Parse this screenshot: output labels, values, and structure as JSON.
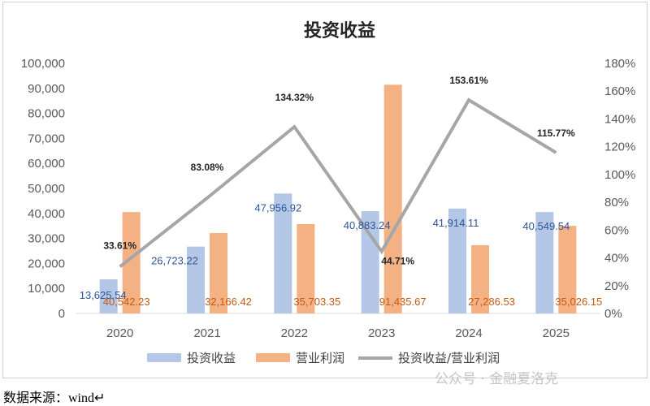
{
  "chart_data": {
    "type": "bar+line",
    "title": "投资收益",
    "categories": [
      "2020",
      "2021",
      "2022",
      "2023",
      "2024",
      "2025"
    ],
    "series": [
      {
        "name": "投资收益",
        "kind": "bar",
        "axis": "left",
        "color": "#b4c7e7",
        "values": [
          13625.54,
          26723.22,
          47956.92,
          40883.24,
          41914.11,
          40549.54
        ],
        "labels": [
          "13,625.54",
          "26,723.22",
          "47,956.92",
          "40,883.24",
          "41,914.11",
          "40,549.54"
        ],
        "label_color": "#2f5597"
      },
      {
        "name": "营业利润",
        "kind": "bar",
        "axis": "left",
        "color": "#f4b183",
        "values": [
          40542.23,
          32166.42,
          35703.35,
          91435.67,
          27286.53,
          35026.15
        ],
        "labels": [
          "40,542.23",
          "32,166.42",
          "35,703.35",
          "91,435.67",
          "27,286.53",
          "35,026.15"
        ],
        "label_color": "#c55a11"
      },
      {
        "name": "投资收益/营业利润",
        "kind": "line",
        "axis": "right",
        "color": "#a6a6a6",
        "values": [
          33.61,
          83.08,
          134.32,
          44.71,
          153.61,
          115.77
        ],
        "labels": [
          "33.61%",
          "83.08%",
          "134.32%",
          "44.71%",
          "153.61%",
          "115.77%"
        ],
        "label_color": "#262626"
      }
    ],
    "y_left": {
      "min": 0,
      "max": 100000,
      "step": 10000,
      "ticks": [
        "0",
        "10,000",
        "20,000",
        "30,000",
        "40,000",
        "50,000",
        "60,000",
        "70,000",
        "80,000",
        "90,000",
        "100,000"
      ]
    },
    "y_right": {
      "min": 0,
      "max": 180,
      "step": 20,
      "ticks": [
        "0%",
        "20%",
        "40%",
        "60%",
        "80%",
        "100%",
        "120%",
        "140%",
        "160%",
        "180%"
      ]
    },
    "grid": false,
    "legend": "bottom"
  },
  "source_text": "数据来源：wind↵",
  "watermark_text": "公众号 · 金融夏洛克"
}
